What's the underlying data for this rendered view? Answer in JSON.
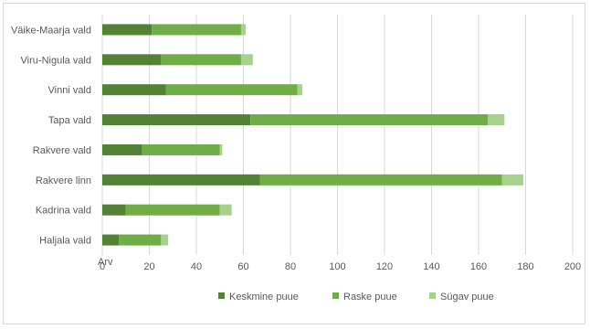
{
  "chart_data": {
    "type": "bar",
    "orientation": "horizontal",
    "stacked": true,
    "categories": [
      "Haljala vald",
      "Kadrina vald",
      "Rakvere linn",
      "Rakvere vald",
      "Tapa vald",
      "Vinni vald",
      "Viru-Nigula vald",
      "Väike-Maarja vald"
    ],
    "series": [
      {
        "name": "Keskmine puue",
        "color": "#548235",
        "values": [
          7,
          10,
          67,
          17,
          63,
          27,
          25,
          21
        ]
      },
      {
        "name": "Raske puue",
        "color": "#70ad47",
        "values": [
          18,
          40,
          103,
          33,
          101,
          56,
          34,
          38
        ]
      },
      {
        "name": "Sügav puue",
        "color": "#a9d18e",
        "values": [
          3,
          5,
          9,
          1,
          7,
          2,
          5,
          2
        ]
      }
    ],
    "xlabel": "Arv",
    "xlim": [
      0,
      200
    ],
    "xticks": [
      0,
      20,
      40,
      60,
      80,
      100,
      120,
      140,
      160,
      180,
      200
    ],
    "grid": "vertical",
    "legend_position": "bottom"
  }
}
